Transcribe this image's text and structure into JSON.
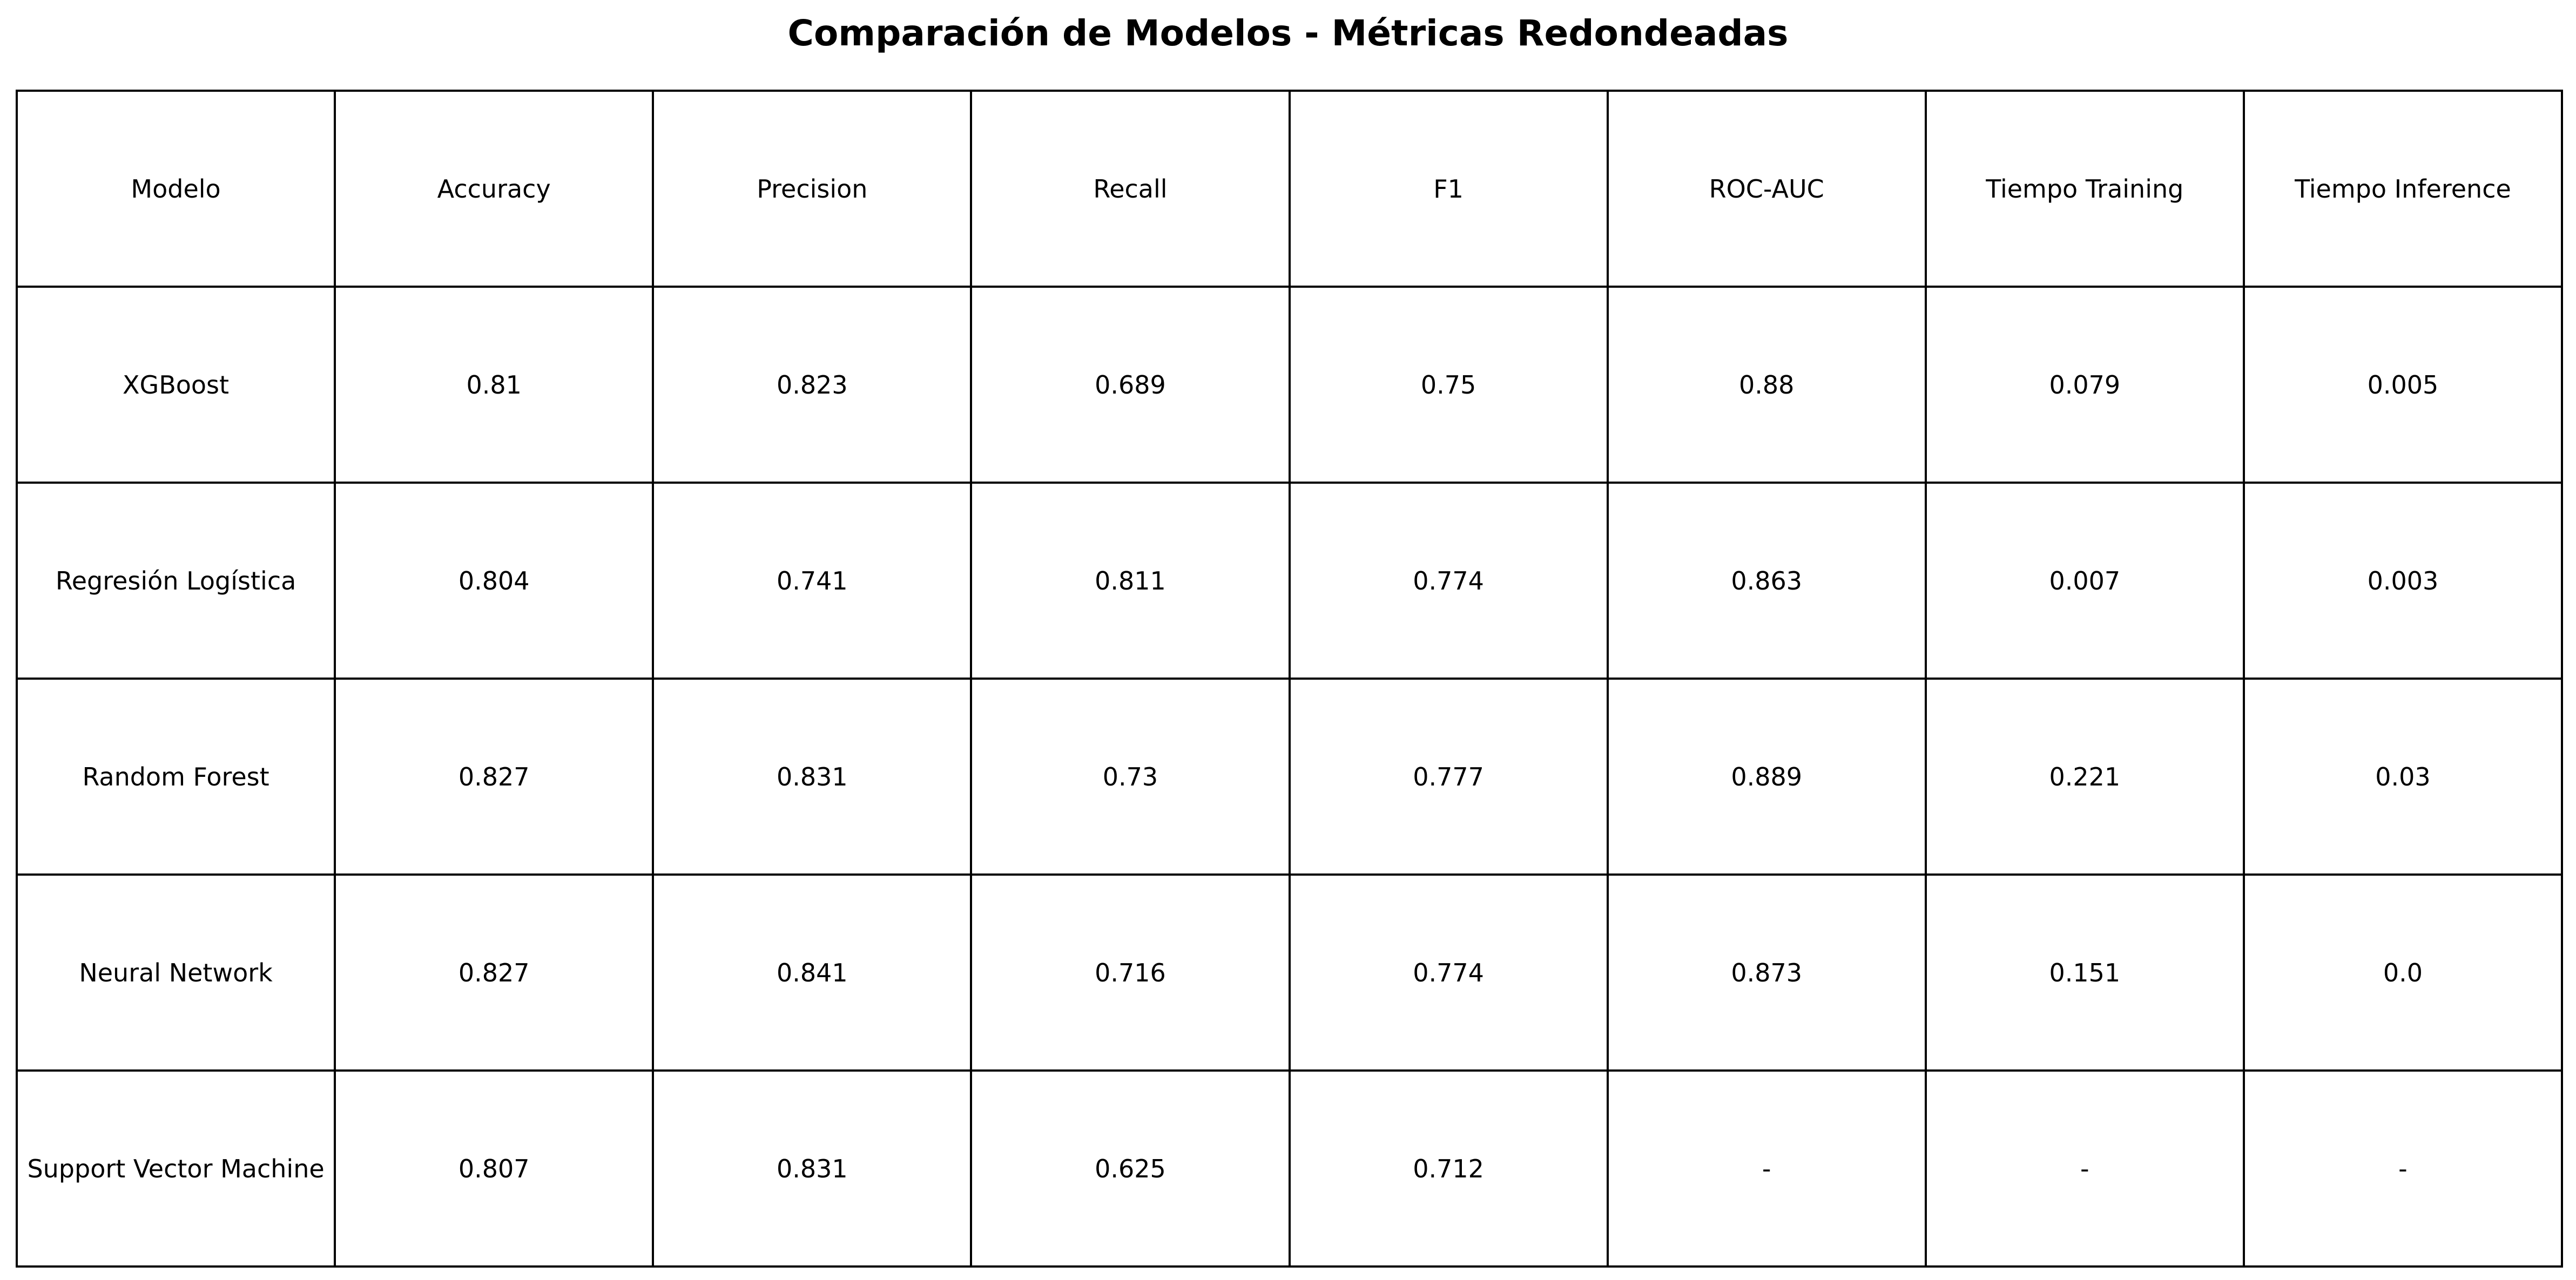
{
  "chart_data": {
    "type": "table",
    "title": "Comparación de Modelos - Métricas Redondeadas",
    "columns": [
      "Modelo",
      "Accuracy",
      "Precision",
      "Recall",
      "F1",
      "ROC-AUC",
      "Tiempo Training",
      "Tiempo Inference"
    ],
    "rows": [
      [
        "XGBoost",
        "0.81",
        "0.823",
        "0.689",
        "0.75",
        "0.88",
        "0.079",
        "0.005"
      ],
      [
        "Regresión Logística",
        "0.804",
        "0.741",
        "0.811",
        "0.774",
        "0.863",
        "0.007",
        "0.003"
      ],
      [
        "Random Forest",
        "0.827",
        "0.831",
        "0.73",
        "0.777",
        "0.889",
        "0.221",
        "0.03"
      ],
      [
        "Neural Network",
        "0.827",
        "0.841",
        "0.716",
        "0.774",
        "0.873",
        "0.151",
        "0.0"
      ],
      [
        "Support Vector Machine",
        "0.807",
        "0.831",
        "0.625",
        "0.712",
        "-",
        "-",
        "-"
      ]
    ]
  }
}
